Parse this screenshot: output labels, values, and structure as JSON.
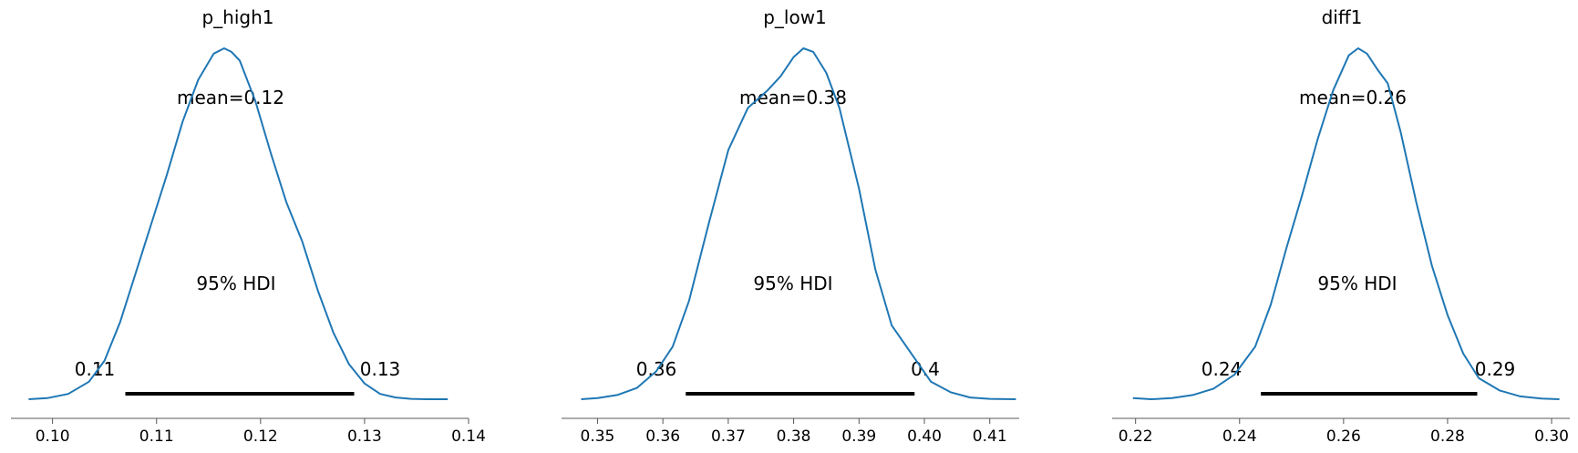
{
  "chart_data": [
    {
      "type": "area",
      "title": "p_high1",
      "xlim": [
        0.096,
        0.14
      ],
      "xticks": [
        "0.10",
        "0.11",
        "0.12",
        "0.13",
        "0.14"
      ],
      "xtick_values": [
        0.1,
        0.11,
        0.12,
        0.13,
        0.14
      ],
      "mean_label": "mean=0.12",
      "hdi_label": "95% HDI",
      "hdi": [
        0.107,
        0.129
      ],
      "hdi_low_label": "0.11",
      "hdi_high_label": "0.13",
      "density": {
        "x": [
          0.0977,
          0.0995,
          0.1015,
          0.1035,
          0.105,
          0.1065,
          0.108,
          0.1095,
          0.111,
          0.1125,
          0.114,
          0.1155,
          0.1165,
          0.1172,
          0.118,
          0.1195,
          0.121,
          0.1225,
          0.124,
          0.1255,
          0.127,
          0.1285,
          0.13,
          0.1315,
          0.133,
          0.1345,
          0.136,
          0.138
        ],
        "y": [
          0.0,
          0.003,
          0.015,
          0.05,
          0.11,
          0.22,
          0.36,
          0.5,
          0.64,
          0.79,
          0.91,
          0.985,
          1.0,
          0.99,
          0.965,
          0.85,
          0.7,
          0.56,
          0.45,
          0.31,
          0.19,
          0.1,
          0.045,
          0.015,
          0.005,
          0.001,
          0.0,
          0.0
        ]
      }
    },
    {
      "type": "area",
      "title": "p_low1",
      "xlim": [
        0.3445,
        0.4145
      ],
      "xticks": [
        "0.35",
        "0.36",
        "0.37",
        "0.38",
        "0.39",
        "0.40",
        "0.41"
      ],
      "xtick_values": [
        0.35,
        0.36,
        0.37,
        0.38,
        0.39,
        0.4,
        0.41
      ],
      "mean_label": "mean=0.38",
      "hdi_label": "95% HDI",
      "hdi": [
        0.3635,
        0.3985
      ],
      "hdi_low_label": "0.36",
      "hdi_high_label": "0.4",
      "density": {
        "x": [
          0.3475,
          0.35,
          0.353,
          0.356,
          0.359,
          0.3615,
          0.364,
          0.367,
          0.37,
          0.373,
          0.376,
          0.378,
          0.38,
          0.3815,
          0.383,
          0.385,
          0.387,
          0.39,
          0.3925,
          0.395,
          0.398,
          0.401,
          0.404,
          0.407,
          0.41,
          0.414
        ],
        "y": [
          0.0,
          0.003,
          0.012,
          0.032,
          0.08,
          0.15,
          0.28,
          0.5,
          0.71,
          0.83,
          0.88,
          0.92,
          0.975,
          1.0,
          0.99,
          0.93,
          0.83,
          0.6,
          0.37,
          0.21,
          0.13,
          0.05,
          0.02,
          0.005,
          0.001,
          0.0
        ]
      }
    },
    {
      "type": "area",
      "title": "diff1",
      "xlim": [
        0.2155,
        0.3035
      ],
      "xticks": [
        "0.22",
        "0.24",
        "0.26",
        "0.28",
        "0.30"
      ],
      "xtick_values": [
        0.22,
        0.24,
        0.26,
        0.28,
        0.3
      ],
      "mean_label": "mean=0.26",
      "hdi_label": "95% HDI",
      "hdi": [
        0.2441,
        0.2857
      ],
      "hdi_low_label": "0.24",
      "hdi_high_label": "0.29",
      "density": {
        "x": [
          0.2195,
          0.223,
          0.227,
          0.231,
          0.235,
          0.239,
          0.243,
          0.246,
          0.249,
          0.252,
          0.255,
          0.258,
          0.261,
          0.2628,
          0.2645,
          0.2665,
          0.2685,
          0.271,
          0.274,
          0.277,
          0.28,
          0.283,
          0.286,
          0.29,
          0.294,
          0.298,
          0.3015
        ],
        "y": [
          0.003,
          0.0,
          0.003,
          0.012,
          0.03,
          0.07,
          0.15,
          0.27,
          0.43,
          0.58,
          0.74,
          0.88,
          0.98,
          1.0,
          0.985,
          0.94,
          0.9,
          0.76,
          0.56,
          0.38,
          0.24,
          0.13,
          0.06,
          0.025,
          0.008,
          0.002,
          0.0
        ]
      }
    }
  ]
}
